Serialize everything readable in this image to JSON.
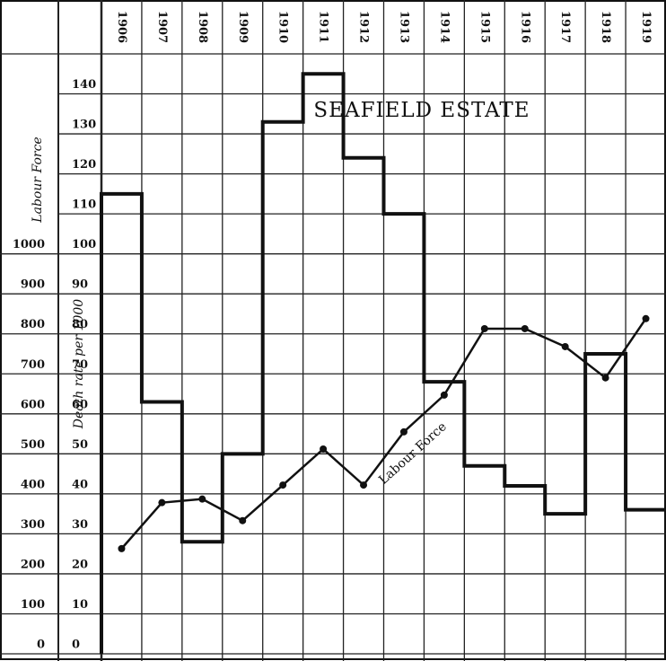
{
  "chart_data": {
    "type": "line",
    "title": "SEAFIELD ESTATE",
    "ylabel": "Death rate per 1000",
    "y2label": "Labour Force",
    "annotation": "Labour Force",
    "categories": [
      "1906",
      "1907",
      "1908",
      "1909",
      "1910",
      "1911",
      "1912",
      "1913",
      "1914",
      "1915",
      "1916",
      "1917",
      "1918",
      "1919"
    ],
    "ylim": [
      0,
      150
    ],
    "yticks": [
      0,
      10,
      20,
      30,
      40,
      50,
      60,
      70,
      80,
      90,
      100,
      110,
      120,
      130,
      140
    ],
    "y2lim": [
      0,
      1500
    ],
    "y2ticks": [
      0,
      100,
      200,
      300,
      400,
      500,
      600,
      700,
      800,
      900,
      1000
    ],
    "grid": true,
    "series": [
      {
        "name": "Death rate per 1000",
        "drawstyle": "steps",
        "color": "#111",
        "values": [
          115,
          63,
          28,
          50,
          133,
          145,
          124,
          110,
          68,
          47,
          42,
          35,
          75,
          36
        ]
      },
      {
        "name": "Labour Force",
        "axis": "y2",
        "color": "#111",
        "values": [
          263,
          378,
          387,
          333,
          422,
          512,
          422,
          555,
          647,
          813,
          813,
          768,
          690,
          838
        ]
      }
    ]
  }
}
